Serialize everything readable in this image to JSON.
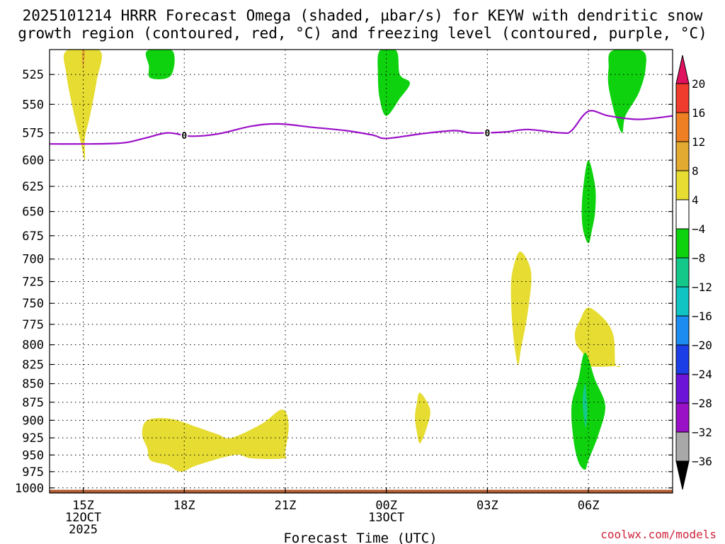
{
  "title": {
    "line1": "2025101214 HRRR Forecast Omega (shaded, µbar/s) for KEYW with dendritic snow",
    "line2": "growth region (contoured, red, °C) and freezing level (contoured, purple, °C)"
  },
  "credit": "coolwx.com/models",
  "chart_data": {
    "type": "contour",
    "xlabel": "Forecast Time (UTC)",
    "x_ticks": [
      {
        "time": "15Z",
        "date": "12OCT",
        "year": "2025",
        "hours": 0
      },
      {
        "time": "18Z",
        "hours": 3
      },
      {
        "time": "21Z",
        "hours": 6
      },
      {
        "time": "00Z",
        "date": "13OCT",
        "hours": 9
      },
      {
        "time": "03Z",
        "hours": 12
      },
      {
        "time": "06Z",
        "hours": 15
      }
    ],
    "xlim_hours": [
      -1,
      17.5
    ],
    "ylabel": "",
    "y_ticks": [
      525,
      550,
      575,
      600,
      625,
      650,
      675,
      700,
      725,
      750,
      775,
      800,
      825,
      850,
      875,
      900,
      925,
      950,
      975,
      1000
    ],
    "ylim_hpa": [
      505,
      1008
    ],
    "grid": true,
    "colorbar": {
      "labels": [
        "20",
        "16",
        "12",
        "8",
        "4",
        "−4",
        "−8",
        "−12",
        "−16",
        "−20",
        "−24",
        "−28",
        "−32",
        "−36"
      ],
      "bins": [
        {
          "from": 20,
          "to": 24,
          "color": "#e0115f"
        },
        {
          "from": 16,
          "to": 20,
          "color": "#f03c2c"
        },
        {
          "from": 12,
          "to": 16,
          "color": "#ee7f22"
        },
        {
          "from": 8,
          "to": 12,
          "color": "#e2aa30"
        },
        {
          "from": 4,
          "to": 8,
          "color": "#e6dc32"
        },
        {
          "from": -4,
          "to": 4,
          "color": "#ffffff"
        },
        {
          "from": -8,
          "to": -4,
          "color": "#0ed20e"
        },
        {
          "from": -12,
          "to": -8,
          "color": "#14c88a"
        },
        {
          "from": -16,
          "to": -12,
          "color": "#10c4c4"
        },
        {
          "from": -20,
          "to": -16,
          "color": "#1c8cf0"
        },
        {
          "from": -24,
          "to": -20,
          "color": "#1b3ee6"
        },
        {
          "from": -28,
          "to": -24,
          "color": "#6c14d8"
        },
        {
          "from": -32,
          "to": -28,
          "color": "#9a10c6"
        },
        {
          "from": -36,
          "to": -32,
          "color": "#a8a8a8"
        },
        {
          "from": -40,
          "to": -36,
          "color": "#000000"
        }
      ]
    },
    "freezing_level": {
      "color": "#9b10c7",
      "label": "0",
      "label_positions_hours": [
        3.0,
        12.0
      ],
      "points": [
        [
          -1,
          585
        ],
        [
          1.0,
          584.5
        ],
        [
          1.8,
          580
        ],
        [
          2.5,
          575
        ],
        [
          3.2,
          578
        ],
        [
          4.0,
          576
        ],
        [
          5.0,
          569
        ],
        [
          5.8,
          567
        ],
        [
          6.8,
          570
        ],
        [
          7.8,
          573
        ],
        [
          8.6,
          577
        ],
        [
          9.0,
          580
        ],
        [
          10.0,
          576
        ],
        [
          11.0,
          573
        ],
        [
          11.5,
          575
        ],
        [
          12.0,
          575
        ],
        [
          12.6,
          574
        ],
        [
          13.2,
          572
        ],
        [
          14.2,
          575
        ],
        [
          14.5,
          573
        ],
        [
          15.0,
          556
        ],
        [
          15.6,
          560
        ],
        [
          16.5,
          563
        ],
        [
          17.5,
          560
        ]
      ]
    },
    "omega_regions": [
      {
        "value_bin": "4 to 8",
        "color": "#e6dc32",
        "points": [
          [
            -0.5,
            506
          ],
          [
            0.5,
            506
          ],
          [
            0.4,
            530
          ],
          [
            0.2,
            560
          ],
          [
            0.05,
            580
          ],
          [
            0.05,
            600
          ],
          [
            -0.1,
            580
          ],
          [
            -0.3,
            555
          ],
          [
            -0.5,
            525
          ]
        ]
      },
      {
        "value_bin": "8 to 12",
        "color": "#e2aa30",
        "points": [
          [
            -0.03,
            506
          ],
          [
            0.05,
            506
          ],
          [
            0.03,
            514
          ],
          [
            0.01,
            520
          ],
          [
            -0.01,
            520
          ],
          [
            -0.03,
            514
          ]
        ]
      },
      {
        "value_bin": "-4 to -8",
        "color": "#0ed20e",
        "points": [
          [
            1.9,
            506
          ],
          [
            2.65,
            506
          ],
          [
            2.6,
            526
          ],
          [
            2.0,
            528
          ],
          [
            1.95,
            518
          ]
        ]
      },
      {
        "value_bin": "-4 to -8",
        "color": "#0ed20e",
        "points": [
          [
            8.8,
            506
          ],
          [
            9.3,
            506
          ],
          [
            9.4,
            525
          ],
          [
            9.7,
            532
          ],
          [
            9.4,
            545
          ],
          [
            9.0,
            560
          ],
          [
            8.8,
            545
          ],
          [
            8.75,
            525
          ]
        ]
      },
      {
        "value_bin": "-4 to -8",
        "color": "#0ed20e",
        "points": [
          [
            15.7,
            506
          ],
          [
            16.6,
            506
          ],
          [
            16.7,
            520
          ],
          [
            16.5,
            540
          ],
          [
            16.1,
            560
          ],
          [
            16.0,
            575
          ],
          [
            15.8,
            560
          ],
          [
            15.6,
            535
          ],
          [
            15.6,
            520
          ]
        ]
      },
      {
        "value_bin": "-4 to -8",
        "color": "#0ed20e",
        "points": [
          [
            15.0,
            600
          ],
          [
            15.2,
            625
          ],
          [
            15.2,
            650
          ],
          [
            15.1,
            670
          ],
          [
            15.0,
            683
          ],
          [
            14.85,
            670
          ],
          [
            14.8,
            650
          ],
          [
            14.85,
            625
          ]
        ]
      },
      {
        "value_bin": "4 to 8",
        "color": "#e6dc32",
        "points": [
          [
            13.0,
            692
          ],
          [
            13.3,
            715
          ],
          [
            13.2,
            760
          ],
          [
            13.0,
            805
          ],
          [
            12.9,
            825
          ],
          [
            12.75,
            780
          ],
          [
            12.7,
            730
          ],
          [
            12.8,
            705
          ]
        ]
      },
      {
        "value_bin": "4 to 8",
        "color": "#e6dc32",
        "points": [
          [
            15.0,
            755
          ],
          [
            15.5,
            770
          ],
          [
            15.75,
            790
          ],
          [
            15.8,
            825
          ],
          [
            15.9,
            827
          ],
          [
            14.9,
            827
          ],
          [
            14.9,
            815
          ],
          [
            14.65,
            800
          ],
          [
            14.6,
            785
          ],
          [
            14.75,
            770
          ]
        ]
      },
      {
        "value_bin": "-4 to -8",
        "color": "#0ed20e",
        "points": [
          [
            14.9,
            810
          ],
          [
            15.2,
            845
          ],
          [
            15.5,
            880
          ],
          [
            15.3,
            920
          ],
          [
            15.0,
            958
          ],
          [
            14.9,
            972
          ],
          [
            14.7,
            960
          ],
          [
            14.55,
            925
          ],
          [
            14.5,
            880
          ],
          [
            14.7,
            845
          ]
        ]
      },
      {
        "value_bin": "-8 to -12",
        "color": "#14c88a",
        "points": [
          [
            14.9,
            850
          ],
          [
            14.95,
            870
          ],
          [
            14.97,
            890
          ],
          [
            14.92,
            910
          ],
          [
            14.85,
            890
          ],
          [
            14.83,
            870
          ]
        ]
      },
      {
        "value_bin": "4 to 8",
        "color": "#e6dc32",
        "points": [
          [
            10.0,
            862
          ],
          [
            10.3,
            885
          ],
          [
            10.2,
            910
          ],
          [
            10.0,
            933
          ],
          [
            9.9,
            915
          ],
          [
            9.85,
            895
          ],
          [
            9.9,
            878
          ]
        ]
      },
      {
        "value_bin": "4 to 8",
        "color": "#e6dc32",
        "points": [
          [
            1.9,
            900
          ],
          [
            2.6,
            898
          ],
          [
            3.4,
            910
          ],
          [
            4.0,
            920
          ],
          [
            4.4,
            925
          ],
          [
            5.3,
            905
          ],
          [
            5.9,
            885
          ],
          [
            6.1,
            905
          ],
          [
            6.0,
            945
          ],
          [
            5.95,
            955
          ],
          [
            5.0,
            955
          ],
          [
            4.5,
            950
          ],
          [
            3.4,
            965
          ],
          [
            2.9,
            975
          ],
          [
            2.5,
            965
          ],
          [
            2.0,
            958
          ],
          [
            1.9,
            940
          ],
          [
            1.75,
            920
          ]
        ]
      }
    ],
    "surface_band": {
      "color": "#b05a30",
      "from_hpa": 1003,
      "to_hpa": 1008
    }
  }
}
